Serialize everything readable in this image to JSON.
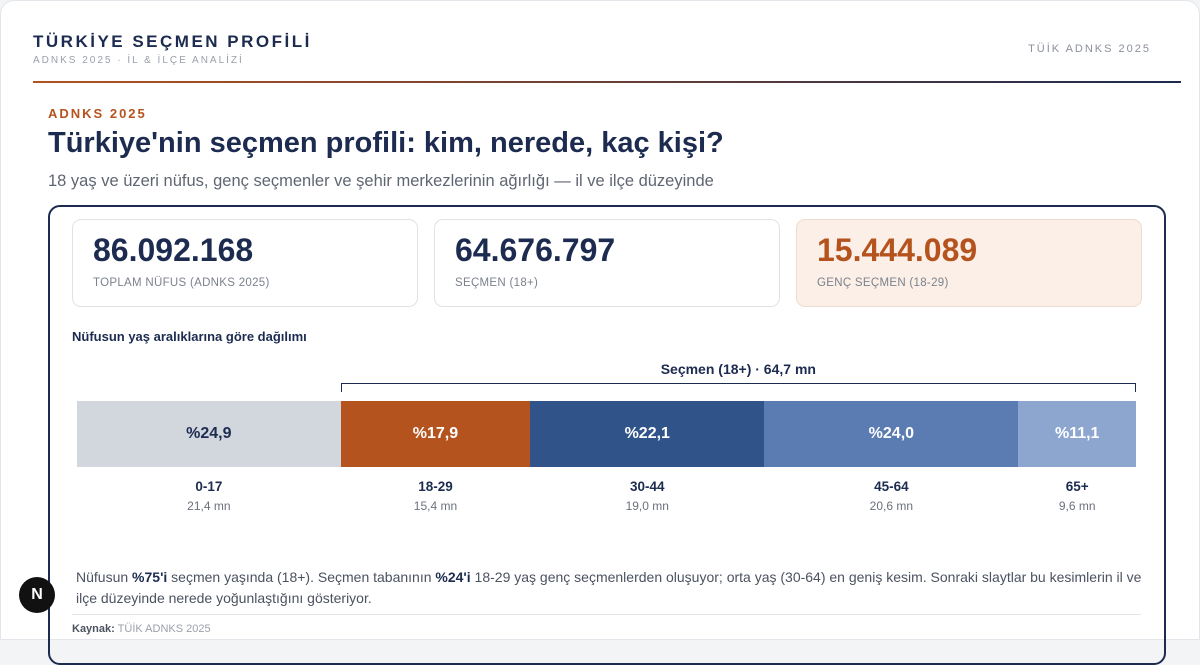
{
  "header": {
    "title": "TÜRKİYE SEÇMEN PROFİLİ",
    "subtitle": "ADNKS 2025 · İL & İLÇE ANALİZİ",
    "source_tag": "TÜİK ADNKS 2025"
  },
  "slide": {
    "eyebrow": "ADNKS 2025",
    "title": "Türkiye'nin seçmen profili: kim, nerede, kaç kişi?",
    "subtitle": "18 yaş ve üzeri nüfus, genç seçmenler ve şehir merkezlerinin ağırlığı — il ve ilçe düzeyinde"
  },
  "kpis": [
    {
      "value": "86.092.168",
      "label": "TOPLAM NÜFUS (ADNKS 2025)"
    },
    {
      "value": "64.676.797",
      "label": "SEÇMEN (18+)"
    },
    {
      "value": "15.444.089",
      "label": "GENÇ SEÇMEN (18-29)"
    }
  ],
  "distribution": {
    "title": "Nüfusun yaş aralıklarına göre dağılımı",
    "bracket_label": "Seçmen (18+) · 64,7 mn",
    "segments": [
      {
        "label": "0-17",
        "percent": 24.9,
        "percent_label": "%24,9",
        "count_label": "21,4 mn",
        "color": "#d2d6dd",
        "text_color": "#1c2b4f"
      },
      {
        "label": "18-29",
        "percent": 17.9,
        "percent_label": "%17,9",
        "count_label": "15,4 mn",
        "color": "#b5531f",
        "text_color": "#ffffff"
      },
      {
        "label": "30-44",
        "percent": 22.1,
        "percent_label": "%22,1",
        "count_label": "19,0 mn",
        "color": "#30548a",
        "text_color": "#ffffff"
      },
      {
        "label": "45-64",
        "percent": 24.0,
        "percent_label": "%24,0",
        "count_label": "20,6 mn",
        "color": "#5a7cb2",
        "text_color": "#ffffff"
      },
      {
        "label": "65+",
        "percent": 11.1,
        "percent_label": "%11,1",
        "count_label": "9,6 mn",
        "color": "#8ca6cf",
        "text_color": "#ffffff"
      }
    ]
  },
  "note": [
    "Nüfusun ",
    "%75'i",
    " seçmen yaşında (18+). Seçmen tabanının ",
    "%24'i",
    " 18-29 yaş genç seçmenlerden oluşuyor; orta yaş (30-64) en geniş kesim. Sonraki slaytlar bu kesimlerin il ve ilçe düzeyinde nerede yoğunlaştığını gösteriyor."
  ],
  "source": {
    "label": "Kaynak:",
    "text": "TÜİK ADNKS 2025"
  },
  "badge": "N"
}
